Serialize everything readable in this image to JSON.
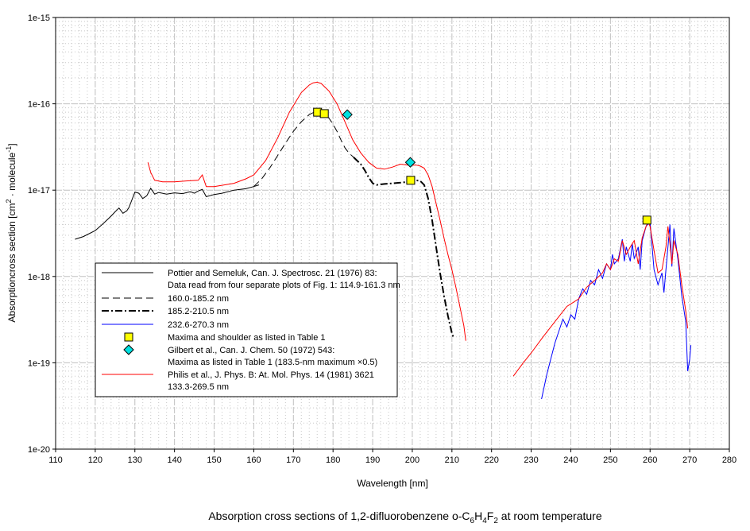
{
  "chart_data": {
    "type": "line",
    "title": "Absorption cross sections of 1,2-difluorobenzene o-C6H4F2 at room temperature",
    "title_parts": {
      "pre": "Absorption cross sections of 1,2-difluorobenzene o-C",
      "s1": "6",
      "mid1": "H",
      "s2": "4",
      "mid2": "F",
      "s3": "2",
      "post": " at room temperature"
    },
    "xlabel": "Wavelength [nm]",
    "ylabel_parts": {
      "pre": "Absorptioncross section [cm",
      "sup1": "2",
      "mid": " · molecule",
      "sup2": "-1",
      "post": "]"
    },
    "xlim": [
      110,
      280
    ],
    "ylim": [
      1e-20,
      1e-15
    ],
    "yscale": "log",
    "grid": true,
    "legend_placement": "lower-left",
    "x_ticks": [
      "110",
      "120",
      "130",
      "140",
      "150",
      "160",
      "170",
      "180",
      "190",
      "200",
      "210",
      "220",
      "230",
      "240",
      "250",
      "260",
      "270",
      "280"
    ],
    "y_ticks": [
      "1e-20",
      "1e-19",
      "1e-18",
      "1e-17",
      "1e-16",
      "1e-15"
    ],
    "series": [
      {
        "name": "Pottier and Semeluk, Can. J. Spectrosc. 21 (1976) 83:",
        "name2": "Data read from four separate plots of Fig. 1: 114.9-161.3 nm",
        "color": "#000000",
        "style": "solid",
        "x": [
          114.9,
          117,
          120,
          122,
          124,
          125,
          126,
          127,
          128,
          128.5,
          129,
          130,
          131,
          132,
          133,
          134,
          135,
          136,
          138,
          140,
          142,
          144,
          145,
          146,
          147,
          148,
          150,
          152,
          155,
          158,
          160,
          161.3
        ],
        "y": [
          2.7e-18,
          2.9e-18,
          3.4e-18,
          4.1e-18,
          5e-18,
          5.6e-18,
          6.2e-18,
          5.4e-18,
          5.8e-18,
          6.3e-18,
          7.2e-18,
          9.5e-18,
          9.2e-18,
          8e-18,
          8.6e-18,
          1.05e-17,
          9e-18,
          9.4e-18,
          9e-18,
          9.3e-18,
          9.1e-18,
          9.6e-18,
          9.2e-18,
          9.8e-18,
          1.02e-17,
          8.4e-18,
          8.9e-18,
          9.2e-18,
          1e-17,
          1.04e-17,
          1.1e-17,
          1.15e-17
        ]
      },
      {
        "name": "160.0-185.2 nm",
        "color": "#000000",
        "style": "dashed",
        "x": [
          160,
          162,
          164,
          166,
          168,
          170,
          172,
          174,
          175,
          176,
          177,
          178,
          179,
          180,
          181,
          182,
          183,
          184,
          185.2
        ],
        "y": [
          1.1e-17,
          1.35e-17,
          1.8e-17,
          2.5e-17,
          3.5e-17,
          4.8e-17,
          6.2e-17,
          7.5e-17,
          7.9e-17,
          8e-17,
          7.8e-17,
          7.4e-17,
          6.8e-17,
          5.8e-17,
          4.8e-17,
          3.8e-17,
          3.1e-17,
          2.7e-17,
          2.4e-17
        ]
      },
      {
        "name": "185.2-210.5 nm",
        "color": "#000000",
        "style": "dashdot",
        "x": [
          185.2,
          187,
          188,
          189,
          190,
          191,
          193,
          195,
          197,
          199,
          200,
          201,
          202,
          203,
          204,
          205,
          206,
          207,
          208,
          209,
          210,
          210.5
        ],
        "y": [
          2.4e-17,
          2e-17,
          1.7e-17,
          1.4e-17,
          1.2e-17,
          1.15e-17,
          1.18e-17,
          1.2e-17,
          1.22e-17,
          1.25e-17,
          1.28e-17,
          1.3e-17,
          1.28e-17,
          1.15e-17,
          8e-18,
          4.5e-18,
          2.2e-18,
          1.1e-18,
          6e-19,
          3.5e-19,
          2.2e-19,
          1.9e-19
        ]
      },
      {
        "name": "232.6-270.3 nm",
        "color": "#0000ff",
        "style": "solid",
        "x": [
          232.6,
          234,
          236,
          238,
          239,
          240,
          241,
          242,
          243,
          244,
          245,
          246,
          247,
          248,
          249,
          250,
          250.5,
          251,
          252,
          253,
          253.5,
          254,
          255,
          255.5,
          256,
          257,
          257.5,
          258,
          259,
          260,
          261,
          262,
          263,
          263.5,
          264,
          265,
          265.5,
          266,
          267,
          268,
          269,
          269.5,
          270,
          270.3
        ],
        "y": [
          3.8e-20,
          7.5e-20,
          1.7e-19,
          3.2e-19,
          2.6e-19,
          3.6e-19,
          3.2e-19,
          5.5e-19,
          7.2e-19,
          6.2e-19,
          9e-19,
          8e-19,
          1.2e-18,
          9.5e-19,
          1.4e-18,
          1.2e-18,
          1.8e-18,
          1.4e-18,
          1.6e-18,
          2.7e-18,
          1.5e-18,
          2.2e-18,
          1.5e-18,
          2.4e-18,
          1.6e-18,
          2.2e-18,
          1.2e-18,
          2.6e-18,
          3.8e-18,
          4.3e-18,
          1.2e-18,
          8e-19,
          1.1e-18,
          6.5e-19,
          1.2e-18,
          4e-18,
          1.3e-18,
          3.6e-18,
          1.6e-18,
          6e-19,
          3e-19,
          8e-20,
          1.1e-19,
          1.6e-19
        ]
      },
      {
        "name": "Philis et al., J. Phys. B: At. Mol. Phys. 14 (1981) 3621",
        "name2": "133.3-269.5 nm",
        "color": "#ff0000",
        "style": "solid",
        "x": [
          133.3,
          134,
          135,
          137,
          140,
          143,
          146,
          147,
          148,
          150,
          155,
          158,
          160,
          163,
          166,
          169,
          172,
          174,
          175,
          176,
          177,
          179,
          181,
          183,
          185,
          187,
          189,
          191,
          193,
          195,
          197,
          199,
          201,
          202,
          203,
          204,
          205,
          206,
          207,
          208,
          209,
          210,
          211,
          212,
          213,
          213.5,
          null,
          225.5,
          228,
          230,
          233,
          236,
          239,
          242,
          244,
          246,
          248,
          249,
          250,
          251,
          252,
          253,
          254,
          255,
          256,
          257,
          258,
          259,
          259.5,
          260,
          261,
          262,
          263,
          264,
          264.5,
          265,
          265.5,
          266,
          267,
          268,
          269,
          269.5
        ],
        "y": [
          2.1e-17,
          1.6e-17,
          1.3e-17,
          1.25e-17,
          1.25e-17,
          1.28e-17,
          1.3e-17,
          1.5e-17,
          1.1e-17,
          1.1e-17,
          1.2e-17,
          1.35e-17,
          1.5e-17,
          2.2e-17,
          4e-17,
          8e-17,
          1.35e-16,
          1.65e-16,
          1.75e-16,
          1.78e-16,
          1.72e-16,
          1.4e-16,
          1e-16,
          6.2e-17,
          3.8e-17,
          2.7e-17,
          2.1e-17,
          1.8e-17,
          1.75e-17,
          1.85e-17,
          2e-17,
          1.95e-17,
          1.95e-17,
          1.9e-17,
          1.8e-17,
          1.5e-17,
          1.1e-17,
          7e-18,
          4.5e-18,
          2.8e-18,
          1.8e-18,
          1.2e-18,
          7.5e-19,
          4.5e-19,
          2.7e-19,
          1.8e-19,
          null,
          7e-20,
          1e-19,
          1.3e-19,
          2e-19,
          3e-19,
          4.5e-19,
          5.5e-19,
          7.5e-19,
          9e-19,
          1.1e-18,
          1.4e-18,
          1.2e-18,
          1.6e-18,
          1.5e-18,
          2.6e-18,
          1.8e-18,
          2.2e-18,
          2.6e-18,
          1.4e-18,
          2.8e-18,
          3.8e-18,
          4.3e-18,
          3.8e-18,
          2e-18,
          1.1e-18,
          1.2e-18,
          2.2e-18,
          3.8e-18,
          2.4e-18,
          1.4e-18,
          2.6e-18,
          1.8e-18,
          8e-19,
          4e-19,
          2.5e-19
        ]
      }
    ],
    "markers": [
      {
        "name": "Maxima and shoulder as listed in Table 1",
        "shape": "square",
        "color": "#ffff00",
        "x": [
          176.1,
          177.8,
          199.6,
          259.2
        ],
        "y": [
          8e-17,
          7.7e-17,
          1.3e-17,
          4.5e-18
        ]
      },
      {
        "name": "Gilbert et al., Can. J. Chem. 50 (1972) 543:",
        "name2": "Maxima as listed in Table 1 (183.5-nm maximum ×0.5)",
        "shape": "diamond",
        "color": "#00e0e0",
        "x": [
          183.6,
          199.5
        ],
        "y": [
          7.5e-17,
          2.1e-17
        ]
      }
    ]
  }
}
